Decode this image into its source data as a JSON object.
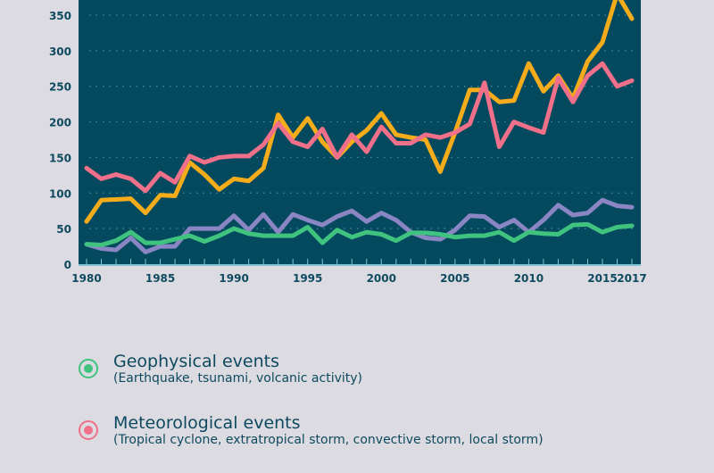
{
  "chart_data": {
    "type": "line",
    "x": [
      1980,
      1981,
      1982,
      1983,
      1984,
      1985,
      1986,
      1987,
      1988,
      1989,
      1990,
      1991,
      1992,
      1993,
      1994,
      1995,
      1996,
      1997,
      1998,
      1999,
      2000,
      2001,
      2002,
      2003,
      2004,
      2005,
      2006,
      2007,
      2008,
      2009,
      2010,
      2011,
      2012,
      2013,
      2014,
      2015,
      2016,
      2017
    ],
    "ylim": [
      0,
      360
    ],
    "yticks": [
      0,
      50,
      100,
      150,
      200,
      250,
      300,
      350
    ],
    "xticks": [
      1980,
      1985,
      1990,
      1995,
      2000,
      2005,
      2010,
      2015,
      2017
    ],
    "grid": true,
    "series": [
      {
        "color": "#f5ac1b",
        "values": [
          60,
          90,
          91,
          92,
          72,
          97,
          96,
          143,
          126,
          105,
          120,
          117,
          135,
          210,
          178,
          205,
          172,
          150,
          172,
          188,
          212,
          182,
          178,
          175,
          130,
          185,
          245,
          245,
          228,
          230,
          282,
          243,
          265,
          233,
          285,
          312,
          380,
          345
        ]
      },
      {
        "name": "Meteorological events",
        "color": "#f0708a",
        "values": [
          135,
          120,
          126,
          120,
          103,
          128,
          115,
          152,
          143,
          150,
          152,
          152,
          168,
          198,
          172,
          165,
          190,
          150,
          182,
          158,
          193,
          170,
          170,
          182,
          178,
          185,
          197,
          255,
          165,
          200,
          192,
          185,
          262,
          228,
          265,
          282,
          250,
          258
        ]
      },
      {
        "color": "#8a86c4",
        "values": [
          28,
          22,
          20,
          37,
          17,
          25,
          25,
          50,
          50,
          50,
          68,
          48,
          70,
          45,
          70,
          62,
          55,
          67,
          75,
          60,
          72,
          62,
          45,
          37,
          35,
          48,
          68,
          67,
          52,
          62,
          45,
          62,
          83,
          69,
          72,
          90,
          82,
          80
        ]
      },
      {
        "name": "Geophysical events",
        "color": "#3fc37e",
        "values": [
          28,
          27,
          33,
          45,
          30,
          30,
          35,
          40,
          32,
          40,
          50,
          43,
          40,
          40,
          40,
          52,
          30,
          48,
          38,
          45,
          42,
          33,
          44,
          44,
          42,
          38,
          40,
          40,
          45,
          33,
          45,
          43,
          42,
          55,
          56,
          45,
          52,
          54
        ]
      }
    ]
  },
  "legend": [
    {
      "title": "Geophysical events",
      "subtitle": "(Earthquake, tsunami, volcanic activity)",
      "color": "#3fc37e"
    },
    {
      "title": "Meteorological events",
      "subtitle": "(Tropical cyclone, extratropical storm, convective storm, local storm)",
      "color": "#f0708a"
    }
  ],
  "colors": {
    "plot_bg": "#05495e",
    "page_bg": "#dcdbe2",
    "text": "#0e4a5f",
    "axis": "#7fc4d6"
  }
}
